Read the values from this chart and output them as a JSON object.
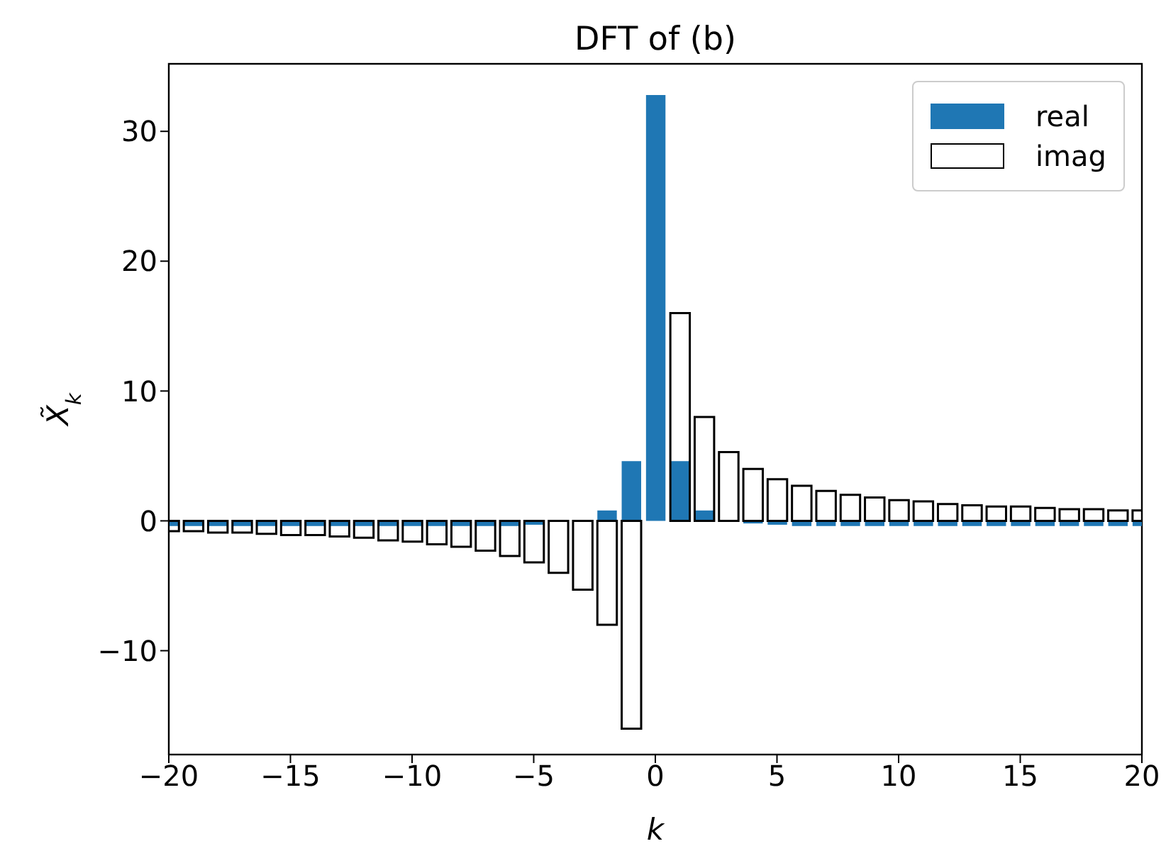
{
  "chart_data": {
    "type": "bar",
    "title": "DFT of (b)",
    "xlabel": "k",
    "ylabel": "X̃$_{k}$",
    "x": [
      -20,
      -19,
      -18,
      -17,
      -16,
      -15,
      -14,
      -13,
      -12,
      -11,
      -10,
      -9,
      -8,
      -7,
      -6,
      -5,
      -4,
      -3,
      -2,
      -1,
      0,
      1,
      2,
      3,
      4,
      5,
      6,
      7,
      8,
      9,
      10,
      11,
      12,
      13,
      14,
      15,
      16,
      17,
      18,
      19,
      20
    ],
    "series": [
      {
        "name": "real",
        "color": "#1f77b4",
        "values": [
          -0.4,
          -0.4,
          -0.4,
          -0.4,
          -0.4,
          -0.4,
          -0.4,
          -0.4,
          -0.4,
          -0.4,
          -0.4,
          -0.4,
          -0.4,
          -0.4,
          -0.4,
          -0.3,
          null,
          null,
          0.8,
          4.6,
          32.8,
          4.6,
          0.8,
          null,
          -0.2,
          -0.3,
          -0.4,
          -0.4,
          -0.4,
          -0.4,
          -0.4,
          -0.4,
          -0.4,
          -0.4,
          -0.4,
          -0.4,
          -0.4,
          -0.4,
          -0.4,
          -0.4,
          -0.4
        ]
      },
      {
        "name": "imag",
        "color": "#000000",
        "values": [
          -0.8,
          -0.8,
          -0.9,
          -0.9,
          -1.0,
          -1.1,
          -1.1,
          -1.2,
          -1.3,
          -1.5,
          -1.6,
          -1.8,
          -2.0,
          -2.3,
          -2.7,
          -3.2,
          -4.0,
          -5.3,
          -8.0,
          -16.0,
          0,
          16.0,
          8.0,
          5.3,
          4.0,
          3.2,
          2.7,
          2.3,
          2.0,
          1.8,
          1.6,
          1.5,
          1.3,
          1.2,
          1.1,
          1.1,
          1.0,
          0.9,
          0.9,
          0.8,
          0.8
        ]
      }
    ],
    "xlim": [
      -20,
      20
    ],
    "xticks": [
      {
        "value": -20,
        "label": "−20"
      },
      {
        "value": -15,
        "label": "−15"
      },
      {
        "value": -10,
        "label": "−10"
      },
      {
        "value": -5,
        "label": "−5"
      },
      0,
      5,
      10,
      15,
      20
    ],
    "ylim": [
      -18,
      35.2
    ],
    "yticks": [
      {
        "value": -10,
        "label": "−10"
      },
      0,
      10,
      20,
      30
    ],
    "grid": false,
    "legend": "top right"
  }
}
